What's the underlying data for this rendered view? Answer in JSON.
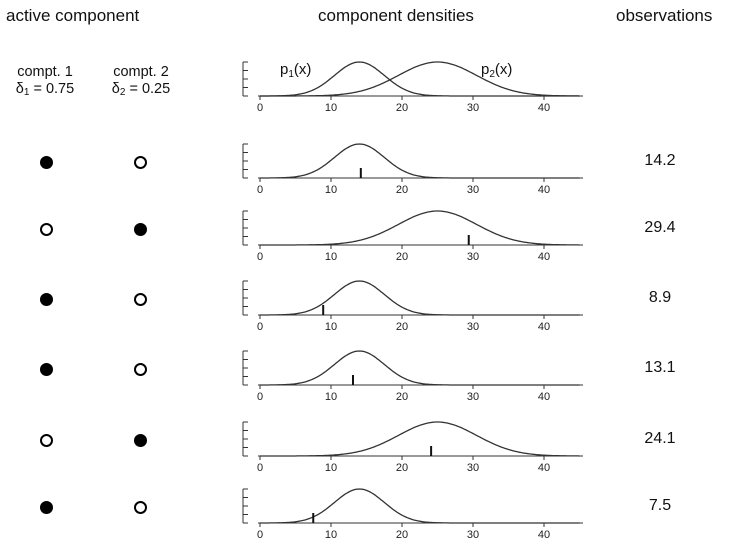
{
  "headers": {
    "active_component": "active component",
    "component_densities": "component densities",
    "observations": "observations"
  },
  "components": [
    {
      "name": "compt. 1",
      "weight_symbol": "δ",
      "weight_index": "1",
      "weight_value": "= 0.75"
    },
    {
      "name": "compt. 2",
      "weight_symbol": "δ",
      "weight_index": "2",
      "weight_value": "= 0.25"
    }
  ],
  "density_labels": [
    {
      "base": "p",
      "index": "1",
      "arg": "(x)"
    },
    {
      "base": "p",
      "index": "2",
      "arg": "(x)"
    }
  ],
  "chart_data": {
    "type": "line",
    "x_ticks": [
      0,
      10,
      20,
      30,
      40
    ],
    "xlim": [
      0,
      45
    ],
    "component_curves": [
      {
        "mean": 14,
        "sd": 3.5
      },
      {
        "mean": 25,
        "sd": 5.5
      }
    ],
    "rows": [
      {
        "active": 1,
        "observation": 14.2,
        "label": "14.2"
      },
      {
        "active": 2,
        "observation": 29.4,
        "label": "29.4"
      },
      {
        "active": 1,
        "observation": 8.9,
        "label": "8.9"
      },
      {
        "active": 1,
        "observation": 13.1,
        "label": "13.1"
      },
      {
        "active": 2,
        "observation": 24.1,
        "label": "24.1"
      },
      {
        "active": 1,
        "observation": 7.5,
        "label": "7.5"
      }
    ]
  }
}
